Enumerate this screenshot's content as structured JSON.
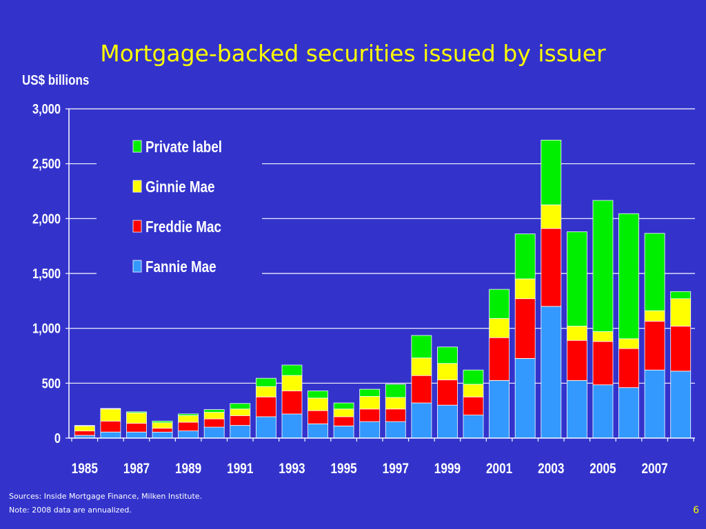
{
  "slide": {
    "title": "Mortgage-backed securities issued by issuer",
    "unit_label": "US$ billions",
    "sources": "Sources: Inside Mortgage Finance, Milken Institute.",
    "note": "Note: 2008 data are annualized.",
    "page_number": "6"
  },
  "chart_data": {
    "type": "bar",
    "stacked": true,
    "title": "Mortgage-backed securities issued by issuer",
    "ylabel": "US$ billions",
    "xlabel": "",
    "ylim": [
      0,
      3000
    ],
    "yticks": [
      0,
      500,
      1000,
      1500,
      2000,
      2500,
      3000
    ],
    "ytick_labels": [
      "0",
      "500",
      "1,000",
      "1,500",
      "2,000",
      "2,500",
      "3,000"
    ],
    "grid": true,
    "legend_position": "top-left",
    "categories": [
      "1985",
      "1986",
      "1987",
      "1988",
      "1989",
      "1990",
      "1991",
      "1992",
      "1993",
      "1994",
      "1995",
      "1996",
      "1997",
      "1998",
      "1999",
      "2000",
      "2001",
      "2002",
      "2003",
      "2004",
      "2005",
      "2006",
      "2007",
      "2008"
    ],
    "xtick_labels": [
      "1985",
      "1987",
      "1989",
      "1991",
      "1993",
      "1995",
      "1997",
      "1999",
      "2001",
      "2003",
      "2005",
      "2007"
    ],
    "colors": {
      "Fannie Mae": "#3399ff",
      "Freddie Mac": "#ff0000",
      "Ginnie Mae": "#ffff00",
      "Private label": "#00ee00",
      "background": "#3333cc",
      "title": "#ffff00"
    },
    "series": [
      {
        "name": "Fannie Mae",
        "values": [
          25,
          55,
          55,
          55,
          65,
          100,
          115,
          195,
          220,
          130,
          110,
          150,
          150,
          320,
          300,
          210,
          525,
          725,
          1200,
          525,
          485,
          460,
          620,
          610
        ]
      },
      {
        "name": "Freddie Mac",
        "values": [
          40,
          100,
          80,
          35,
          80,
          75,
          90,
          180,
          210,
          120,
          85,
          115,
          115,
          250,
          230,
          165,
          390,
          545,
          710,
          365,
          395,
          355,
          445,
          410
        ]
      },
      {
        "name": "Ginnie Mae",
        "values": [
          45,
          110,
          95,
          50,
          60,
          60,
          60,
          95,
          140,
          115,
          70,
          115,
          105,
          160,
          150,
          115,
          175,
          180,
          215,
          130,
          90,
          90,
          95,
          250
        ]
      },
      {
        "name": "Private label",
        "values": [
          5,
          5,
          10,
          15,
          15,
          25,
          50,
          75,
          95,
          65,
          55,
          65,
          120,
          205,
          150,
          130,
          265,
          410,
          590,
          860,
          1195,
          1140,
          705,
          65
        ]
      }
    ]
  }
}
